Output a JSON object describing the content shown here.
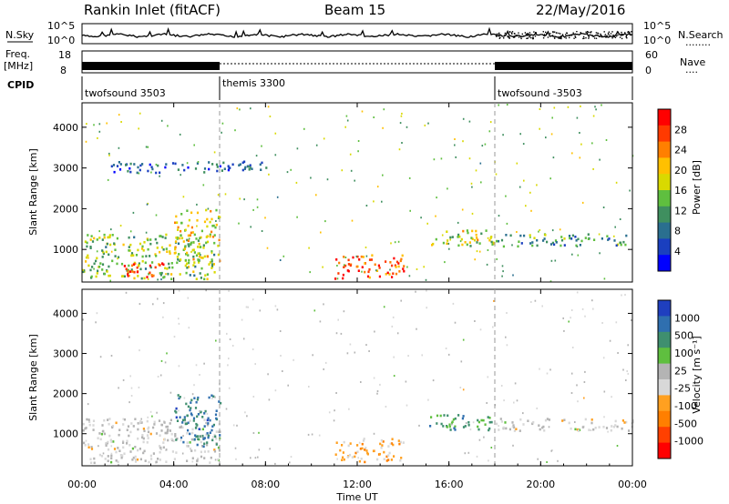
{
  "header": {
    "station": "Rankin Inlet (fitACF)",
    "beam": "Beam 15",
    "date": "22/May/2016"
  },
  "strips": {
    "nsky_label": "N.Sky",
    "nsearch_label": "N.Search",
    "nsearch_marker": "........",
    "nsky_ticks": [
      "10^5",
      "10^0"
    ],
    "nsearch_ticks": [
      "10^5",
      "10^0"
    ],
    "freq_label": "Freq.",
    "freq_unit": "[MHz]",
    "freq_ticks": [
      "18",
      "8"
    ],
    "nave_label": "Nave",
    "nave_marker": "....",
    "nave_ticks": [
      "60",
      "0"
    ],
    "cpid_label": "CPID",
    "cpid_segments": [
      {
        "name": "twofsound 3503",
        "start_hr": 0,
        "end_hr": 6
      },
      {
        "name": "themis 3300",
        "start_hr": 6,
        "end_hr": 18
      },
      {
        "name": "twofsound -3503",
        "start_hr": 18,
        "end_hr": 24
      }
    ]
  },
  "power_panel": {
    "ylabel": "Slant Range [km]",
    "cbar_label": "Power [dB]",
    "cbar_ticks": [
      "28",
      "24",
      "20",
      "16",
      "12",
      "8",
      "4"
    ],
    "cbar_colors": [
      "#ff0000",
      "#ff3a00",
      "#ff7f00",
      "#ffc000",
      "#d9d900",
      "#5fbf3f",
      "#3f8f5f",
      "#2a6f8f",
      "#1a3fbf",
      "#0000ff"
    ],
    "y_ticks": [
      "4000",
      "3000",
      "2000",
      "1000"
    ]
  },
  "velocity_panel": {
    "ylabel": "Slant Range [km]",
    "cbar_label": "Velocity [m s⁻¹]",
    "cbar_ticks": [
      "1000",
      "500",
      "100",
      "25",
      "-25",
      "-100",
      "-500",
      "-1000"
    ],
    "cbar_colors": [
      "#1f3fbf",
      "#2f6faf",
      "#3f8f6f",
      "#5fbf3f",
      "#b4b4b4",
      "#d8d8d8",
      "#ffa020",
      "#ff7f00",
      "#ff4000",
      "#ff0000"
    ],
    "y_ticks": [
      "4000",
      "3000",
      "2000",
      "1000"
    ]
  },
  "xaxis": {
    "label": "Time UT",
    "ticks": [
      "00:00",
      "04:00",
      "08:00",
      "12:00",
      "16:00",
      "20:00",
      "00:00"
    ]
  },
  "chart_data": [
    {
      "type": "heatmap",
      "title": "Rankin Inlet (fitACF) Beam 15 22/May/2016",
      "xlabel": "Time UT",
      "ylabel": "Slant Range [km]",
      "xlim_hr": [
        0,
        24
      ],
      "ylim_km": [
        200,
        4600
      ],
      "colorbar": {
        "label": "Power [dB]",
        "range": [
          0,
          30
        ]
      },
      "regions": [
        {
          "t_start": 0.0,
          "t_end": 5.8,
          "r_start": 300,
          "r_end": 1400,
          "value": 14
        },
        {
          "t_start": 1.8,
          "t_end": 3.6,
          "r_start": 300,
          "r_end": 700,
          "value": 28
        },
        {
          "t_start": 4.0,
          "t_end": 6.0,
          "r_start": 700,
          "r_end": 2000,
          "value": 18
        },
        {
          "t_start": 11.0,
          "t_end": 14.0,
          "r_start": 300,
          "r_end": 900,
          "value": 26
        },
        {
          "t_start": 15.0,
          "t_end": 18.0,
          "r_start": 1100,
          "r_end": 1500,
          "value": 16
        },
        {
          "t_start": 18.0,
          "t_end": 24.0,
          "r_start": 1100,
          "r_end": 1400,
          "value": 10
        },
        {
          "t_start": 1.0,
          "t_end": 8.0,
          "r_start": 2900,
          "r_end": 3200,
          "value": 6
        }
      ]
    },
    {
      "type": "heatmap",
      "xlabel": "Time UT",
      "ylabel": "Slant Range [km]",
      "xlim_hr": [
        0,
        24
      ],
      "ylim_km": [
        200,
        4600
      ],
      "colorbar": {
        "label": "Velocity [m s⁻¹]",
        "range": [
          -1000,
          1000
        ]
      },
      "regions": [
        {
          "t_start": 0.0,
          "t_end": 6.0,
          "r_start": 300,
          "r_end": 1400,
          "value": 10
        },
        {
          "t_start": 4.0,
          "t_end": 6.0,
          "r_start": 700,
          "r_end": 2000,
          "value": 700
        },
        {
          "t_start": 11.0,
          "t_end": 14.0,
          "r_start": 300,
          "r_end": 900,
          "value": -300
        },
        {
          "t_start": 15.0,
          "t_end": 18.0,
          "r_start": 1100,
          "r_end": 1500,
          "value": 500
        },
        {
          "t_start": 18.0,
          "t_end": 24.0,
          "r_start": 1100,
          "r_end": 1400,
          "value": 0
        }
      ]
    }
  ]
}
